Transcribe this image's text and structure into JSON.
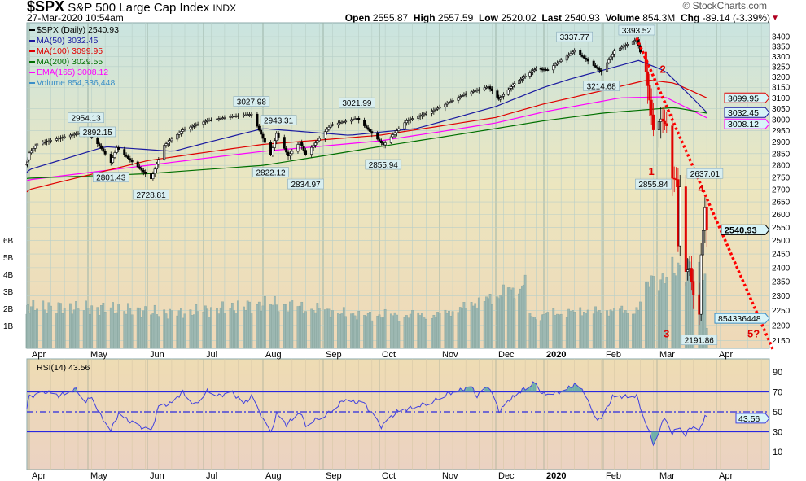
{
  "header": {
    "symbol": "$SPX",
    "name": "S&P 500 Large Cap Index",
    "exchange": "INDX",
    "datetime": "27-Mar-2020 10:54am",
    "watermark": "© StockCharts.com",
    "open_label": "Open",
    "open": "2555.87",
    "high_label": "High",
    "high": "2557.59",
    "low_label": "Low",
    "low": "2520.02",
    "last_label": "Last",
    "last": "2540.93",
    "volume_label": "Volume",
    "volume": "854.3M",
    "chg_label": "Chg",
    "chg": "-89.14 (-3.39%)"
  },
  "colors": {
    "ma50": "#1a1aa0",
    "ma100": "#e00000",
    "ma200": "#007000",
    "ema165": "#ff00ff",
    "volume": "#3a8fc8",
    "rsi": "#4040e0",
    "trend": "#ff0000"
  },
  "chart_data": [
    {
      "type": "line",
      "title": "$SPX (Daily) 2540.93",
      "scale": "log",
      "ylim": [
        2150,
        3400
      ],
      "yticks": [
        3400,
        3350,
        3300,
        3250,
        3200,
        3150,
        3100,
        3050,
        3000,
        2950,
        2900,
        2850,
        2800,
        2750,
        2700,
        2650,
        2600,
        2550,
        2500,
        2450,
        2400,
        2350,
        2300,
        2250,
        2200,
        2150
      ],
      "xticks": [
        "Apr",
        "May",
        "Jun",
        "Jul",
        "Aug",
        "Sep",
        "Oct",
        "Nov",
        "Dec",
        "2020",
        "Feb",
        "Mar",
        "Apr"
      ],
      "legend": [
        {
          "key": "price",
          "label": "$SPX (Daily) 2540.93"
        },
        {
          "key": "ma50",
          "label": "MA(50) 3032.45"
        },
        {
          "key": "ma100",
          "label": "MA(100) 3099.95"
        },
        {
          "key": "ma200",
          "label": "MA(200) 3029.55"
        },
        {
          "key": "ema165",
          "label": "EMA(165) 3008.12"
        },
        {
          "key": "volume",
          "label": "Volume 854,336,448"
        }
      ],
      "price": [
        [
          "2019-03-27",
          2805
        ],
        [
          "2019-04-05",
          2892
        ],
        [
          "2019-04-23",
          2933
        ],
        [
          "2019-04-30",
          2945
        ],
        [
          "2019-05-07",
          2884
        ],
        [
          "2019-05-13",
          2812
        ],
        [
          "2019-05-16",
          2876
        ],
        [
          "2019-05-23",
          2822
        ],
        [
          "2019-06-03",
          2744
        ],
        [
          "2019-06-10",
          2886
        ],
        [
          "2019-06-20",
          2954
        ],
        [
          "2019-07-03",
          2996
        ],
        [
          "2019-07-15",
          3014
        ],
        [
          "2019-07-26",
          3025
        ],
        [
          "2019-08-05",
          2844
        ],
        [
          "2019-08-08",
          2938
        ],
        [
          "2019-08-14",
          2840
        ],
        [
          "2019-08-20",
          2900
        ],
        [
          "2019-08-23",
          2847
        ],
        [
          "2019-09-05",
          2976
        ],
        [
          "2019-09-19",
          3006
        ],
        [
          "2019-10-03",
          2888
        ],
        [
          "2019-10-15",
          2995
        ],
        [
          "2019-10-28",
          3039
        ],
        [
          "2019-11-15",
          3120
        ],
        [
          "2019-11-27",
          3153
        ],
        [
          "2019-12-03",
          3093
        ],
        [
          "2019-12-13",
          3168
        ],
        [
          "2019-12-27",
          3240
        ],
        [
          "2020-01-03",
          3234
        ],
        [
          "2020-01-17",
          3329
        ],
        [
          "2020-01-31",
          3225
        ],
        [
          "2020-02-07",
          3327
        ],
        [
          "2020-02-19",
          3386
        ],
        [
          "2020-02-24",
          3225
        ],
        [
          "2020-02-28",
          2954
        ],
        [
          "2020-03-03",
          3003
        ],
        [
          "2020-03-06",
          2972
        ],
        [
          "2020-03-09",
          2746
        ],
        [
          "2020-03-11",
          2741
        ],
        [
          "2020-03-12",
          2480
        ],
        [
          "2020-03-13",
          2711
        ],
        [
          "2020-03-16",
          2386
        ],
        [
          "2020-03-18",
          2398
        ],
        [
          "2020-03-20",
          2304
        ],
        [
          "2020-03-23",
          2237
        ],
        [
          "2020-03-24",
          2447
        ],
        [
          "2020-03-26",
          2630
        ],
        [
          "2020-03-27",
          2541
        ]
      ],
      "ma50": [
        [
          "2019-03-27",
          2770
        ],
        [
          "2019-05-10",
          2880
        ],
        [
          "2019-06-15",
          2860
        ],
        [
          "2019-08-01",
          2960
        ],
        [
          "2019-09-15",
          2930
        ],
        [
          "2019-10-20",
          2960
        ],
        [
          "2019-12-01",
          3060
        ],
        [
          "2020-01-15",
          3190
        ],
        [
          "2020-02-20",
          3280
        ],
        [
          "2020-03-05",
          3230
        ],
        [
          "2020-03-27",
          3032.45
        ]
      ],
      "ma100": [
        [
          "2019-03-27",
          2690
        ],
        [
          "2019-06-01",
          2820
        ],
        [
          "2019-08-01",
          2890
        ],
        [
          "2019-10-01",
          2930
        ],
        [
          "2019-12-01",
          3010
        ],
        [
          "2020-01-15",
          3100
        ],
        [
          "2020-02-25",
          3185
        ],
        [
          "2020-03-10",
          3170
        ],
        [
          "2020-03-27",
          3099.95
        ]
      ],
      "ma200": [
        [
          "2019-03-27",
          2745
        ],
        [
          "2019-06-01",
          2765
        ],
        [
          "2019-08-01",
          2800
        ],
        [
          "2019-10-01",
          2880
        ],
        [
          "2019-12-01",
          2960
        ],
        [
          "2020-02-01",
          3030
        ],
        [
          "2020-03-10",
          3055
        ],
        [
          "2020-03-27",
          3029.55
        ]
      ],
      "ema165": [
        [
          "2019-03-27",
          2735
        ],
        [
          "2019-06-01",
          2800
        ],
        [
          "2019-08-01",
          2860
        ],
        [
          "2019-10-01",
          2905
        ],
        [
          "2019-12-01",
          2985
        ],
        [
          "2020-02-10",
          3100
        ],
        [
          "2020-03-05",
          3105
        ],
        [
          "2020-03-27",
          3008.12
        ]
      ],
      "volume_axis": [
        "6B",
        "5B",
        "4B",
        "3B",
        "2B",
        "1B"
      ],
      "volume_billions": [
        [
          "2019-03-27",
          2.1
        ],
        [
          "2019-05-15",
          2.0
        ],
        [
          "2019-06-15",
          1.7
        ],
        [
          "2019-08-07",
          2.3
        ],
        [
          "2019-09-20",
          1.6
        ],
        [
          "2019-11-01",
          1.6
        ],
        [
          "2019-12-20",
          3.4
        ],
        [
          "2019-12-23",
          1.5
        ],
        [
          "2020-01-15",
          1.8
        ],
        [
          "2020-02-20",
          1.9
        ],
        [
          "2020-02-28",
          4.2
        ],
        [
          "2020-03-05",
          3.5
        ],
        [
          "2020-03-13",
          4.7
        ],
        [
          "2020-03-20",
          4.2
        ],
        [
          "2020-03-26",
          3.8
        ],
        [
          "2020-03-27",
          0.85
        ]
      ],
      "annotations": [
        {
          "date": "2019-04-30",
          "value": "2954.13",
          "pos": "above"
        },
        {
          "date": "2019-05-06",
          "value": "2892.15",
          "pos": "above"
        },
        {
          "date": "2019-05-13",
          "value": "2801.43",
          "pos": "below"
        },
        {
          "date": "2019-06-03",
          "value": "2728.81",
          "pos": "below"
        },
        {
          "date": "2019-07-26",
          "value": "3027.98",
          "pos": "above"
        },
        {
          "date": "2019-08-09",
          "value": "2943.31",
          "pos": "above"
        },
        {
          "date": "2019-08-05",
          "value": "2822.12",
          "pos": "below"
        },
        {
          "date": "2019-08-23",
          "value": "2834.97",
          "pos": "below"
        },
        {
          "date": "2019-09-19",
          "value": "3021.99",
          "pos": "above"
        },
        {
          "date": "2019-10-03",
          "value": "2855.94",
          "pos": "below"
        },
        {
          "date": "2020-01-17",
          "value": "3337.77",
          "pos": "above"
        },
        {
          "date": "2020-02-19",
          "value": "3393.52",
          "pos": "above"
        },
        {
          "date": "2020-01-31",
          "value": "3214.68",
          "pos": "below"
        },
        {
          "date": "2020-02-28",
          "value": "2855.84",
          "pos": "below"
        },
        {
          "date": "2020-03-26",
          "value": "2637.01",
          "pos": "above"
        },
        {
          "date": "2020-03-23",
          "value": "2191.86",
          "pos": "below"
        }
      ],
      "wave_labels": [
        {
          "label": "1",
          "date": "2020-02-27",
          "price": 2760
        },
        {
          "label": "2",
          "date": "2020-03-04",
          "price": 3220
        },
        {
          "label": "3",
          "date": "2020-03-06",
          "price": 2160
        },
        {
          "label": "4",
          "date": "2020-03-24",
          "price": 2690
        },
        {
          "label": "5?",
          "date": "2020-04-20",
          "price": 2160
        }
      ],
      "trendline": [
        [
          "2020-02-19",
          3393
        ],
        [
          "2020-04-30",
          2120
        ]
      ],
      "price_tags": [
        {
          "key": "ma100",
          "value": "3099.95"
        },
        {
          "key": "ma50",
          "value": "3032.45"
        },
        {
          "key": "ema165",
          "value": "3008.12"
        },
        {
          "key": "price",
          "value": "2540.93"
        },
        {
          "key": "volume",
          "value": "854336448"
        }
      ]
    },
    {
      "type": "line",
      "title": "RSI(14) 43.56",
      "ylim": [
        0,
        100
      ],
      "yticks": [
        90,
        70,
        50,
        30,
        10
      ],
      "levels": [
        70,
        50,
        30
      ],
      "last_tag": "43.56",
      "rsi": [
        [
          "2019-03-27",
          55
        ],
        [
          "2019-04-01",
          65
        ],
        [
          "2019-04-10",
          70
        ],
        [
          "2019-04-16",
          66
        ],
        [
          "2019-04-25",
          73
        ],
        [
          "2019-04-30",
          60
        ],
        [
          "2019-05-03",
          66
        ],
        [
          "2019-05-08",
          45
        ],
        [
          "2019-05-13",
          32
        ],
        [
          "2019-05-17",
          48
        ],
        [
          "2019-05-23",
          40
        ],
        [
          "2019-06-03",
          30
        ],
        [
          "2019-06-07",
          55
        ],
        [
          "2019-06-13",
          58
        ],
        [
          "2019-06-20",
          70
        ],
        [
          "2019-06-26",
          57
        ],
        [
          "2019-07-03",
          71
        ],
        [
          "2019-07-10",
          66
        ],
        [
          "2019-07-15",
          71
        ],
        [
          "2019-07-22",
          58
        ],
        [
          "2019-07-26",
          65
        ],
        [
          "2019-08-05",
          28
        ],
        [
          "2019-08-08",
          48
        ],
        [
          "2019-08-13",
          37
        ],
        [
          "2019-08-20",
          50
        ],
        [
          "2019-08-23",
          37
        ],
        [
          "2019-09-05",
          50
        ],
        [
          "2019-09-12",
          62
        ],
        [
          "2019-09-23",
          58
        ],
        [
          "2019-10-02",
          35
        ],
        [
          "2019-10-10",
          50
        ],
        [
          "2019-10-28",
          60
        ],
        [
          "2019-11-05",
          68
        ],
        [
          "2019-11-18",
          75
        ],
        [
          "2019-11-21",
          65
        ],
        [
          "2019-11-27",
          76
        ],
        [
          "2019-12-03",
          50
        ],
        [
          "2019-12-10",
          62
        ],
        [
          "2019-12-18",
          72
        ],
        [
          "2019-12-27",
          80
        ],
        [
          "2019-12-31",
          68
        ],
        [
          "2020-01-10",
          70
        ],
        [
          "2020-01-17",
          77
        ],
        [
          "2020-01-22",
          70
        ],
        [
          "2020-01-27",
          45
        ],
        [
          "2020-01-31",
          42
        ],
        [
          "2020-02-06",
          65
        ],
        [
          "2020-02-19",
          66
        ],
        [
          "2020-02-28",
          18
        ],
        [
          "2020-03-03",
          35
        ],
        [
          "2020-03-05",
          45
        ],
        [
          "2020-03-09",
          28
        ],
        [
          "2020-03-12",
          35
        ],
        [
          "2020-03-16",
          25
        ],
        [
          "2020-03-18",
          35
        ],
        [
          "2020-03-23",
          30
        ],
        [
          "2020-03-26",
          46
        ],
        [
          "2020-03-27",
          43.56
        ]
      ]
    }
  ]
}
